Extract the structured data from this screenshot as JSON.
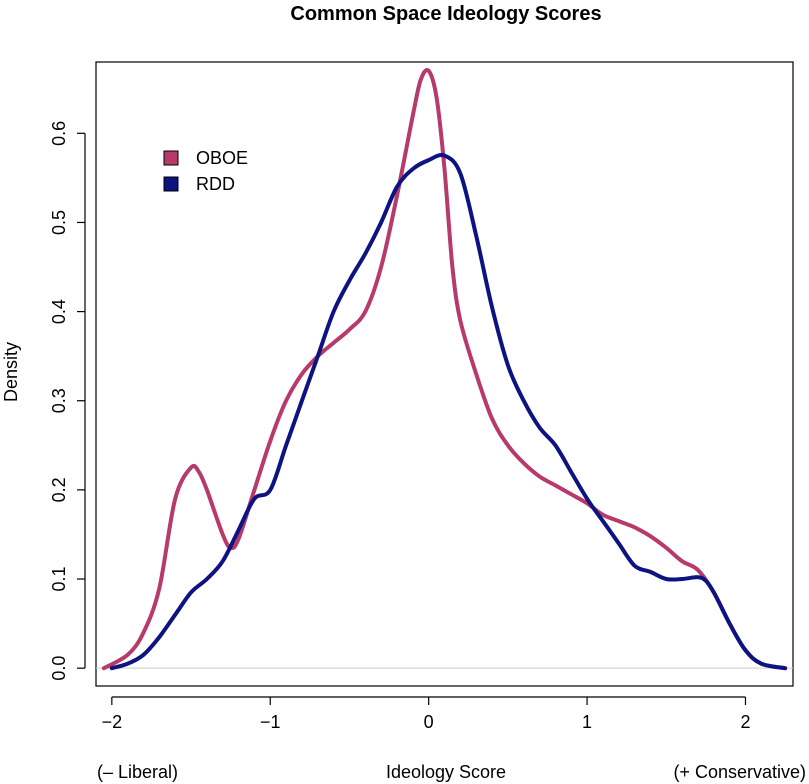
{
  "chart_data": {
    "type": "line",
    "title": "Common Space Ideology Scores",
    "xlabel": "Ideology Score",
    "xlabel_left": "(– Liberal)",
    "xlabel_right": "(+ Conservative)",
    "ylabel": "Density",
    "xlim": [
      -2.1,
      2.3
    ],
    "ylim": [
      -0.02,
      0.68
    ],
    "x_ticks": [
      -2,
      -1,
      0,
      1,
      2
    ],
    "x_tick_labels": [
      "−2",
      "−1",
      "0",
      "1",
      "2"
    ],
    "y_ticks": [
      0.0,
      0.1,
      0.2,
      0.3,
      0.4,
      0.5,
      0.6
    ],
    "y_tick_labels": [
      "0.0",
      "0.1",
      "0.2",
      "0.3",
      "0.4",
      "0.5",
      "0.6"
    ],
    "grid": false,
    "baseline": 0,
    "legend_position": "top-left",
    "series": [
      {
        "name": "OBOE",
        "color": "#b83a6b",
        "x": [
          -2.05,
          -1.9,
          -1.8,
          -1.7,
          -1.6,
          -1.5,
          -1.45,
          -1.4,
          -1.3,
          -1.25,
          -1.2,
          -1.1,
          -1.0,
          -0.9,
          -0.8,
          -0.7,
          -0.6,
          -0.5,
          -0.4,
          -0.3,
          -0.2,
          -0.1,
          -0.05,
          0.0,
          0.05,
          0.1,
          0.15,
          0.2,
          0.3,
          0.4,
          0.5,
          0.6,
          0.7,
          0.8,
          0.9,
          1.0,
          1.1,
          1.2,
          1.3,
          1.4,
          1.5,
          1.6,
          1.7,
          1.8,
          1.9,
          2.0,
          2.1,
          2.25
        ],
        "y": [
          0.0,
          0.015,
          0.04,
          0.09,
          0.19,
          0.225,
          0.22,
          0.2,
          0.15,
          0.135,
          0.145,
          0.2,
          0.255,
          0.3,
          0.33,
          0.35,
          0.365,
          0.38,
          0.4,
          0.45,
          0.53,
          0.62,
          0.66,
          0.67,
          0.64,
          0.56,
          0.45,
          0.39,
          0.33,
          0.28,
          0.25,
          0.23,
          0.215,
          0.205,
          0.195,
          0.185,
          0.172,
          0.165,
          0.158,
          0.148,
          0.135,
          0.12,
          0.11,
          0.085,
          0.05,
          0.02,
          0.005,
          0.0
        ]
      },
      {
        "name": "RDD",
        "color": "#0d1380",
        "x": [
          -2.0,
          -1.9,
          -1.8,
          -1.7,
          -1.6,
          -1.5,
          -1.4,
          -1.3,
          -1.2,
          -1.1,
          -1.0,
          -0.9,
          -0.8,
          -0.7,
          -0.6,
          -0.5,
          -0.4,
          -0.3,
          -0.2,
          -0.1,
          0.0,
          0.1,
          0.2,
          0.3,
          0.4,
          0.5,
          0.6,
          0.7,
          0.8,
          0.9,
          1.0,
          1.1,
          1.2,
          1.3,
          1.4,
          1.5,
          1.6,
          1.7,
          1.75,
          1.8,
          1.9,
          2.0,
          2.1,
          2.25
        ],
        "y": [
          0.0,
          0.005,
          0.015,
          0.035,
          0.06,
          0.085,
          0.1,
          0.12,
          0.155,
          0.19,
          0.2,
          0.25,
          0.3,
          0.35,
          0.4,
          0.435,
          0.465,
          0.5,
          0.54,
          0.56,
          0.57,
          0.575,
          0.555,
          0.485,
          0.405,
          0.34,
          0.3,
          0.27,
          0.25,
          0.22,
          0.19,
          0.165,
          0.14,
          0.115,
          0.108,
          0.1,
          0.1,
          0.102,
          0.098,
          0.085,
          0.05,
          0.02,
          0.005,
          0.0
        ]
      }
    ]
  }
}
